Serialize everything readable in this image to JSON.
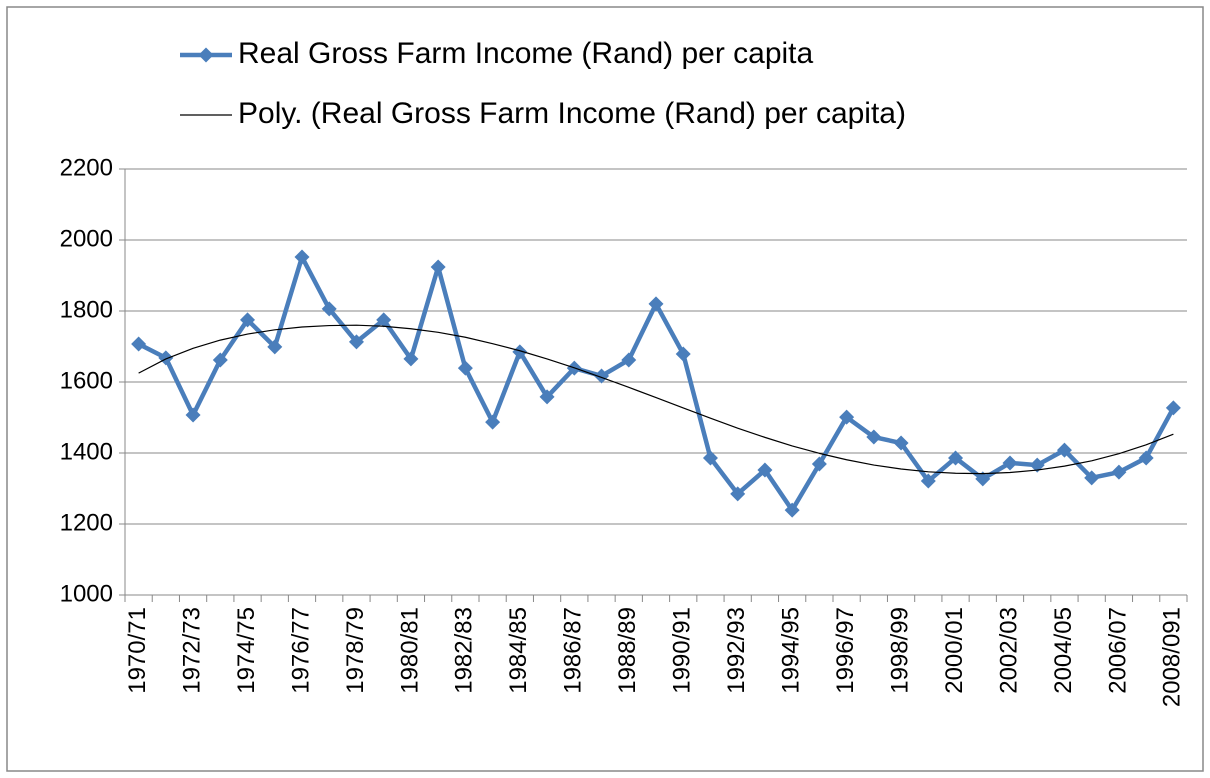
{
  "chart_data": {
    "type": "line",
    "categories": [
      "1970/71",
      null,
      "1972/73",
      null,
      "1974/75",
      null,
      "1976/77",
      null,
      "1978/79",
      null,
      "1980/81",
      null,
      "1982/83",
      null,
      "1984/85",
      null,
      "1986/87",
      null,
      "1988/89",
      null,
      "1990/91",
      null,
      "1992/93",
      null,
      "1994/95",
      null,
      "1996/97",
      null,
      "1998/99",
      null,
      "2000/01",
      null,
      "2002/03",
      null,
      "2004/05",
      null,
      "2006/07",
      null,
      "2008/091"
    ],
    "series": [
      {
        "name": "Real Gross Farm Income (Rand) per capita",
        "color": "#4a7ebb",
        "marker": "diamond",
        "values": [
          1707,
          1668,
          1507,
          1662,
          1775,
          1699,
          1952,
          1806,
          1713,
          1775,
          1665,
          1924,
          1639,
          1487,
          1685,
          1558,
          1639,
          1617,
          1662,
          1820,
          1679,
          1386,
          1285,
          1352,
          1239,
          1369,
          1501,
          1445,
          1428,
          1321,
          1386,
          1327,
          1372,
          1366,
          1408,
          1330,
          1346,
          1386,
          1527
        ]
      },
      {
        "name": "Poly. (Real Gross Farm Income (Rand) per capita)",
        "color": "#000000",
        "marker": "none",
        "values": [
          1625,
          1665,
          1695,
          1718,
          1735,
          1747,
          1755,
          1759,
          1760,
          1757,
          1750,
          1740,
          1726,
          1708,
          1688,
          1665,
          1640,
          1613,
          1585,
          1556,
          1527,
          1498,
          1470,
          1444,
          1420,
          1399,
          1381,
          1366,
          1355,
          1347,
          1343,
          1342,
          1345,
          1352,
          1363,
          1378,
          1398,
          1423,
          1453
        ]
      }
    ],
    "ylim": [
      1000,
      2200
    ],
    "yticks": [
      1000,
      1200,
      1400,
      1600,
      1800,
      2000,
      2200
    ],
    "grid": true,
    "legend": "top"
  }
}
